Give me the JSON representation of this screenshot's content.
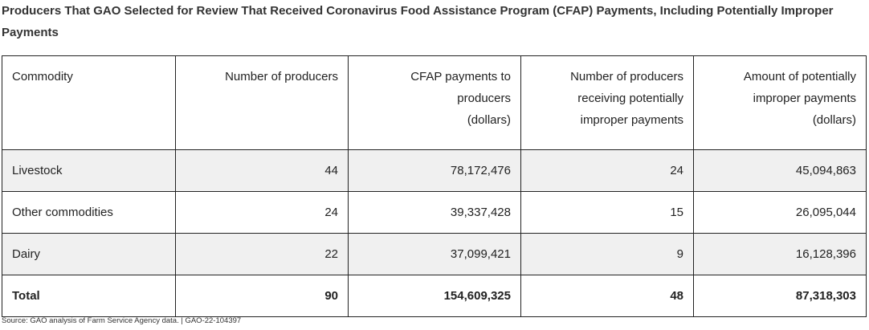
{
  "header": {
    "title": "Producers That GAO Selected for Review That Received Coronavirus Food Assistance Program (CFAP) Payments, Including Potentially Improper Payments"
  },
  "table": {
    "columns": [
      [
        "Commodity"
      ],
      [
        "Number of producers"
      ],
      [
        "CFAP payments to",
        "producers",
        "(dollars)"
      ],
      [
        "Number of producers",
        "receiving potentially",
        "improper payments"
      ],
      [
        "Amount of potentially",
        "improper payments",
        "(dollars)"
      ]
    ],
    "rows": [
      [
        "Livestock",
        "44",
        "78,172,476",
        "24",
        "45,094,863"
      ],
      [
        "Other commodities",
        "24",
        "39,337,428",
        "15",
        "26,095,044"
      ],
      [
        "Dairy",
        "22",
        "37,099,421",
        "9",
        "16,128,396"
      ]
    ],
    "total": [
      "Total",
      "90",
      "154,609,325",
      "48",
      "87,318,303"
    ]
  },
  "footer": {
    "source": "Source: GAO analysis of Farm Service Agency data. | GAO-22-104397"
  }
}
